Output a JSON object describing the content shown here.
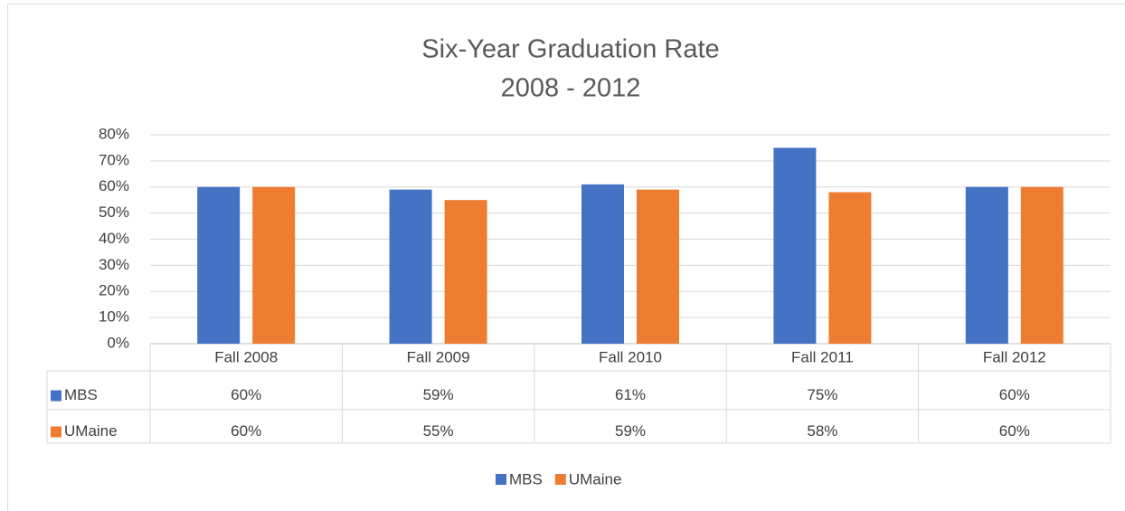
{
  "chart_data": {
    "type": "bar",
    "title": "Six-Year Graduation Rate",
    "subtitle": "2008 - 2012",
    "categories": [
      "Fall 2008",
      "Fall 2009",
      "Fall 2010",
      "Fall 2011",
      "Fall 2012"
    ],
    "series": [
      {
        "name": "MBS",
        "color": "#4472c4",
        "values": [
          60,
          59,
          61,
          75,
          60
        ],
        "value_labels": [
          "60%",
          "59%",
          "61%",
          "75%",
          "60%"
        ]
      },
      {
        "name": "UMaine",
        "color": "#ed7d31",
        "values": [
          60,
          55,
          59,
          58,
          60
        ],
        "value_labels": [
          "60%",
          "55%",
          "59%",
          "58%",
          "60%"
        ]
      }
    ],
    "ylim": [
      0,
      80
    ],
    "yticks": [
      {
        "value": 0,
        "label": "0%"
      },
      {
        "value": 10,
        "label": "10%"
      },
      {
        "value": 20,
        "label": "20%"
      },
      {
        "value": 30,
        "label": "30%"
      },
      {
        "value": 40,
        "label": "40%"
      },
      {
        "value": 50,
        "label": "50%"
      },
      {
        "value": 60,
        "label": "60%"
      },
      {
        "value": 70,
        "label": "70%"
      },
      {
        "value": 80,
        "label": "80%"
      }
    ],
    "grid": true,
    "legend": "bottom"
  }
}
